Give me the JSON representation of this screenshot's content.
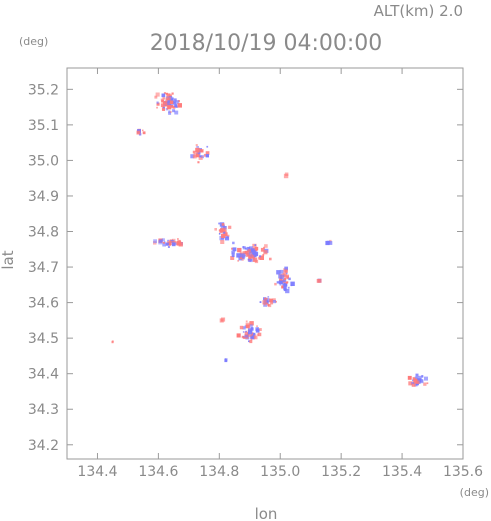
{
  "chart_data": {
    "type": "scatter",
    "title": "2018/10/19 04:00:00",
    "subtitle": "ALT(km) 2.0",
    "xlabel": "lon",
    "ylabel": "lat",
    "xunit": "(deg)",
    "yunit": "(deg)",
    "xlim": [
      134.3,
      135.6
    ],
    "ylim": [
      34.16,
      35.26
    ],
    "xticks": [
      134.4,
      134.6,
      134.8,
      135.0,
      135.2,
      135.4,
      135.6
    ],
    "xtick_labels": [
      "134.4",
      "134.6",
      "134.8",
      "135.0",
      "135.2",
      "135.4",
      "135.6"
    ],
    "yticks": [
      34.2,
      34.3,
      34.4,
      34.5,
      34.6,
      34.7,
      34.8,
      34.9,
      35.0,
      35.1,
      35.2
    ],
    "ytick_labels": [
      "34.2",
      "34.3",
      "34.4",
      "34.5",
      "34.6",
      "34.7",
      "34.8",
      "34.9",
      "35.0",
      "35.1",
      "35.2"
    ],
    "grid": false,
    "colors": {
      "positive": "#ff7a7a",
      "negative": "#7a7aff",
      "axis": "#999999",
      "text": "#8a8a8a"
    },
    "clusters": [
      {
        "lon": 134.63,
        "lat": 35.16,
        "spread_lon": 0.05,
        "spread_lat": 0.04,
        "n": 70,
        "sign": "mixed"
      },
      {
        "lon": 134.54,
        "lat": 35.08,
        "spread_lon": 0.02,
        "spread_lat": 0.008,
        "n": 10,
        "sign": "mixed"
      },
      {
        "lon": 134.74,
        "lat": 35.02,
        "spread_lon": 0.03,
        "spread_lat": 0.03,
        "n": 25,
        "sign": "mixed"
      },
      {
        "lon": 135.02,
        "lat": 34.96,
        "spread_lon": 0.005,
        "spread_lat": 0.005,
        "n": 2,
        "sign": "positive"
      },
      {
        "lon": 134.64,
        "lat": 34.77,
        "spread_lon": 0.06,
        "spread_lat": 0.015,
        "n": 35,
        "sign": "mixed"
      },
      {
        "lon": 134.81,
        "lat": 34.8,
        "spread_lon": 0.03,
        "spread_lat": 0.04,
        "n": 30,
        "sign": "mixed"
      },
      {
        "lon": 134.9,
        "lat": 34.74,
        "spread_lon": 0.08,
        "spread_lat": 0.04,
        "n": 80,
        "sign": "mixed"
      },
      {
        "lon": 135.01,
        "lat": 34.66,
        "spread_lon": 0.04,
        "spread_lat": 0.05,
        "n": 40,
        "sign": "mixed"
      },
      {
        "lon": 134.96,
        "lat": 34.6,
        "spread_lon": 0.04,
        "spread_lat": 0.02,
        "n": 25,
        "sign": "mixed"
      },
      {
        "lon": 134.9,
        "lat": 34.52,
        "spread_lon": 0.05,
        "spread_lat": 0.04,
        "n": 45,
        "sign": "mixed"
      },
      {
        "lon": 135.13,
        "lat": 34.66,
        "spread_lon": 0.006,
        "spread_lat": 0.006,
        "n": 3,
        "sign": "mixed"
      },
      {
        "lon": 135.16,
        "lat": 34.77,
        "spread_lon": 0.01,
        "spread_lat": 0.006,
        "n": 4,
        "sign": "mixed"
      },
      {
        "lon": 134.81,
        "lat": 34.55,
        "spread_lon": 0.005,
        "spread_lat": 0.005,
        "n": 3,
        "sign": "positive"
      },
      {
        "lon": 134.82,
        "lat": 34.44,
        "spread_lon": 0.006,
        "spread_lat": 0.004,
        "n": 3,
        "sign": "negative"
      },
      {
        "lon": 134.45,
        "lat": 34.49,
        "spread_lon": 0.003,
        "spread_lat": 0.003,
        "n": 2,
        "sign": "positive"
      },
      {
        "lon": 135.45,
        "lat": 34.38,
        "spread_lon": 0.04,
        "spread_lat": 0.02,
        "n": 25,
        "sign": "mixed"
      }
    ]
  }
}
